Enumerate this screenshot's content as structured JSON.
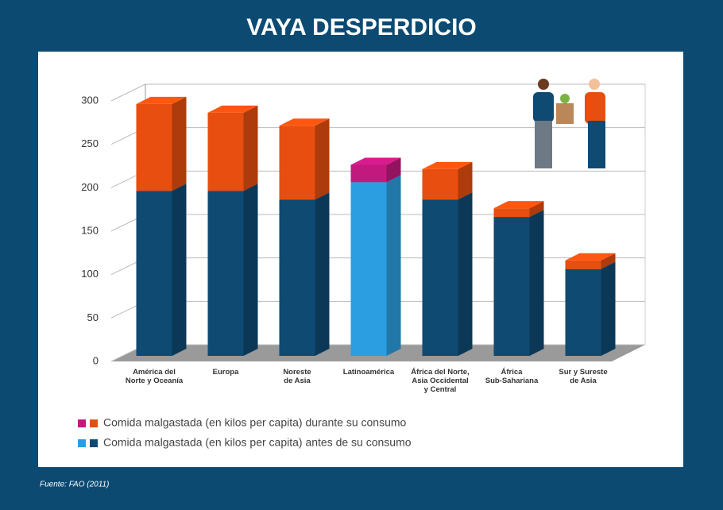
{
  "chart_data": {
    "type": "bar3d_stacked",
    "title": "VAYA DESPERDICIO",
    "source": "Fuente: FAO (2011)",
    "categories": [
      [
        "América del",
        "Norte y Oceanía"
      ],
      [
        "Europa"
      ],
      [
        "Noreste",
        "de Asia"
      ],
      [
        "Latinoamérica"
      ],
      [
        "África del Norte,",
        "Asia Occidental",
        "y Central"
      ],
      [
        "África",
        "Sub-Sahariana"
      ],
      [
        "Sur y Sureste",
        "de Asia"
      ]
    ],
    "series": [
      {
        "name": "Comida malgastada (en kilos per capita) antes de su consumo",
        "values": [
          190,
          190,
          180,
          200,
          180,
          160,
          100
        ],
        "colors": [
          "#0f4a72",
          "#0f4a72",
          "#0f4a72",
          "#2a9ee0",
          "#0f4a72",
          "#0f4a72",
          "#0f4a72"
        ],
        "legend_colors": [
          "#2a9ee0",
          "#0f4a72"
        ]
      },
      {
        "name": "Comida malgastada (en kilos per capita) durante su consumo",
        "values": [
          100,
          90,
          85,
          20,
          35,
          10,
          10
        ],
        "colors": [
          "#e84e0f",
          "#e84e0f",
          "#e84e0f",
          "#c2197e",
          "#e84e0f",
          "#e84e0f",
          "#e84e0f"
        ],
        "legend_colors": [
          "#c2197e",
          "#e84e0f"
        ]
      }
    ],
    "ylim": [
      0,
      300
    ],
    "yticks": [
      0,
      50,
      100,
      150,
      200,
      250,
      300
    ],
    "grid": true
  }
}
